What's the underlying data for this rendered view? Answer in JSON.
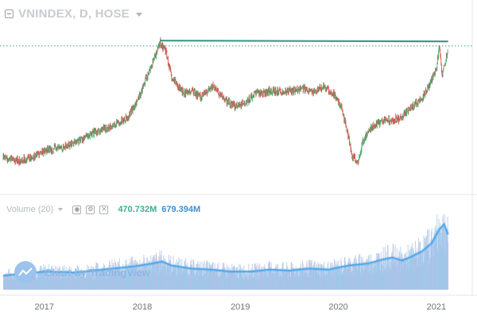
{
  "header": {
    "symbol": "VNINDEX, D, HOSE"
  },
  "volume": {
    "label": "Volume (20)",
    "value1": "470.732M",
    "value2": "679.394M"
  },
  "watermark": {
    "text": "Chart by TradingView"
  },
  "colors": {
    "up": "#4aa872",
    "down": "#d9564f",
    "resistance": "#3a9a86",
    "volume": "#8bbce8",
    "vol_ma": "#4fa5e6"
  },
  "icons": [
    "collapse-icon",
    "chevron-down-icon",
    "eye-icon",
    "gear-icon",
    "close-icon",
    "tradingview-logo-icon"
  ],
  "chart_data": {
    "type": "line",
    "x_tick_labels": [
      "2017",
      "2018",
      "2019",
      "2020",
      "2021"
    ],
    "price": {
      "x": [
        2016.58,
        2016.75,
        2016.9,
        2017.0,
        2017.2,
        2017.4,
        2017.55,
        2017.7,
        2017.85,
        2017.95,
        2018.05,
        2018.12,
        2018.18,
        2018.24,
        2018.3,
        2018.36,
        2018.42,
        2018.5,
        2018.6,
        2018.72,
        2018.85,
        2018.95,
        2019.05,
        2019.15,
        2019.25,
        2019.35,
        2019.45,
        2019.55,
        2019.65,
        2019.75,
        2019.85,
        2019.95,
        2020.02,
        2020.08,
        2020.14,
        2020.2,
        2020.25,
        2020.32,
        2020.4,
        2020.48,
        2020.55,
        2020.62,
        2020.7,
        2020.78,
        2020.86,
        2020.93,
        2021.0,
        2021.03,
        2021.06,
        2021.09,
        2021.12
      ],
      "y": [
        34,
        32,
        35,
        38,
        40,
        45,
        49,
        52,
        57,
        66,
        80,
        90,
        99,
        94,
        78,
        75,
        70,
        72,
        68,
        74,
        66,
        63,
        65,
        70,
        71,
        72,
        71,
        72,
        73,
        71,
        74,
        70,
        64,
        52,
        35,
        31,
        43,
        50,
        53,
        56,
        55,
        56,
        60,
        64,
        68,
        75,
        84,
        98,
        80,
        88,
        96
      ]
    },
    "resistance_line": {
      "x": [
        2018.18,
        2021.12
      ],
      "y": [
        100,
        100
      ]
    },
    "dotted_level": 97,
    "volume": {
      "x": [
        2016.58,
        2016.8,
        2017.0,
        2017.3,
        2017.6,
        2017.9,
        2018.1,
        2018.2,
        2018.3,
        2018.5,
        2018.7,
        2018.9,
        2019.1,
        2019.3,
        2019.5,
        2019.7,
        2019.9,
        2020.1,
        2020.3,
        2020.45,
        2020.55,
        2020.65,
        2020.75,
        2020.85,
        2020.95,
        2021.03,
        2021.08,
        2021.12
      ],
      "y": [
        14,
        16,
        18,
        17,
        20,
        23,
        26,
        28,
        24,
        21,
        20,
        18,
        18,
        20,
        19,
        21,
        20,
        24,
        26,
        30,
        32,
        29,
        33,
        38,
        46,
        60,
        65,
        55
      ]
    }
  }
}
